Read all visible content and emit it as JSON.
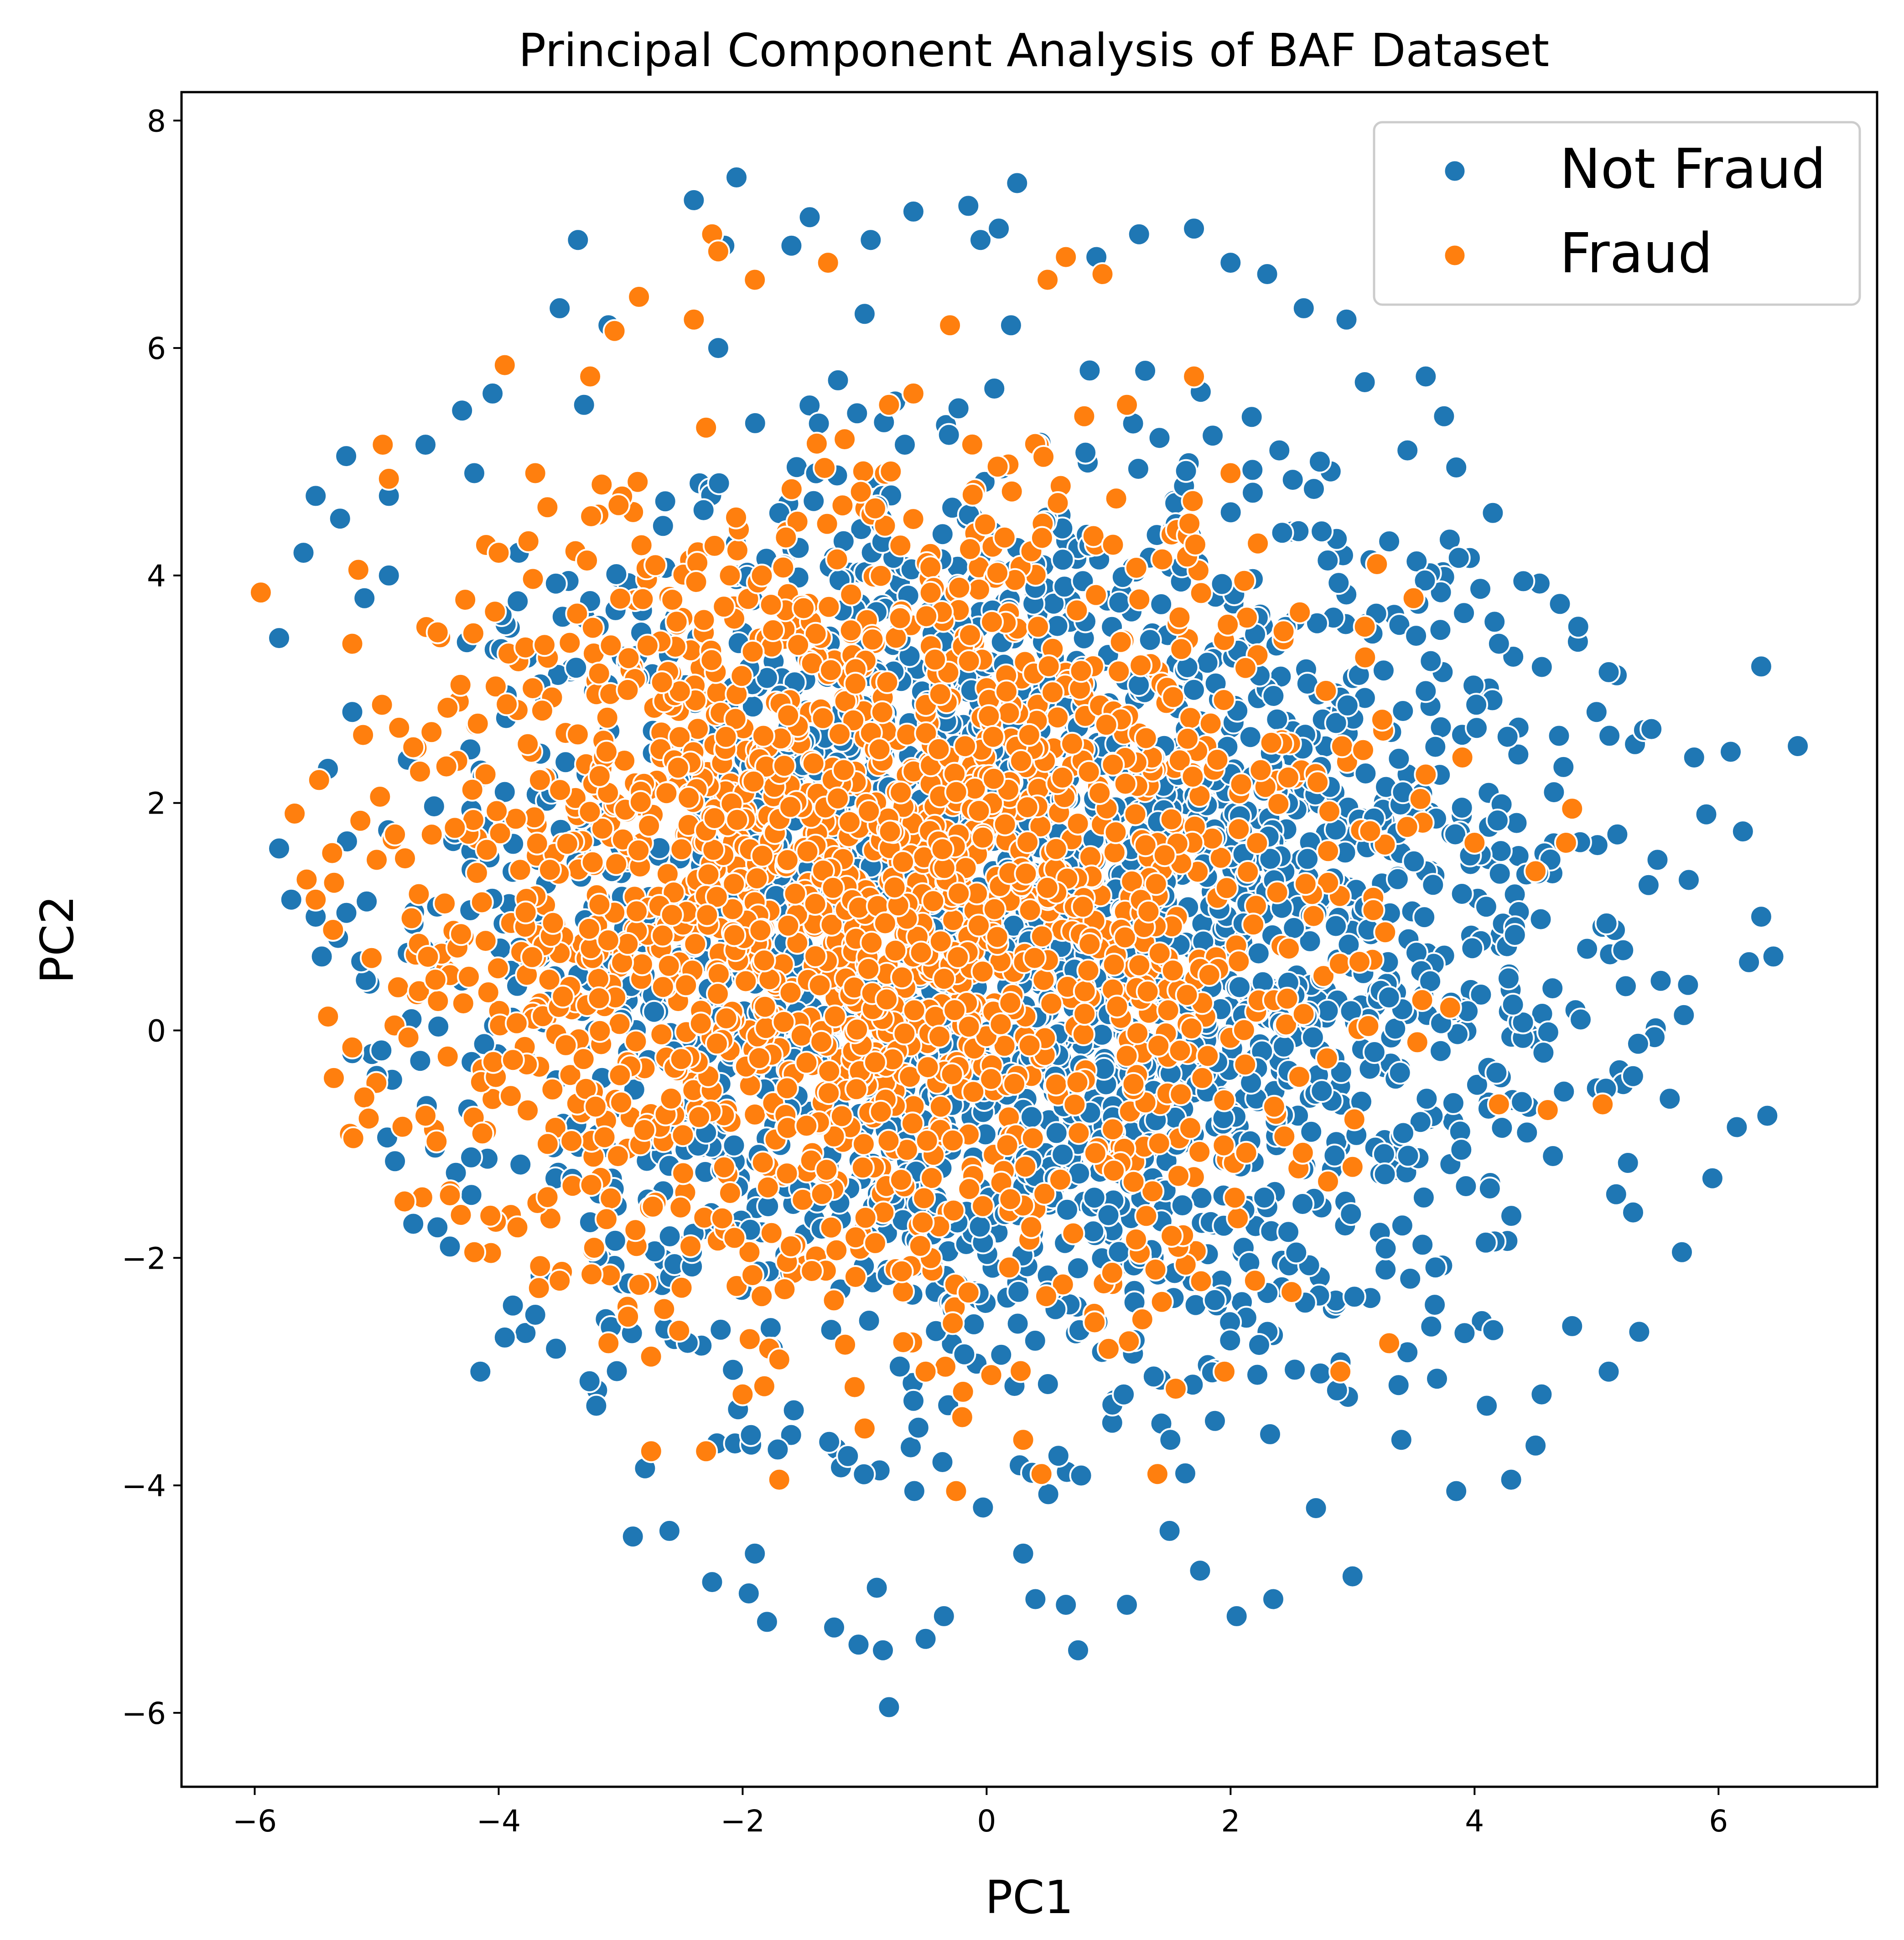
{
  "chart_data": {
    "type": "scatter",
    "title": "Principal Component Analysis of BAF Dataset",
    "xlabel": "PC1",
    "ylabel": "PC2",
    "xlim": [
      -6.6,
      7.3
    ],
    "ylim": [
      -6.65,
      8.25
    ],
    "xticks": [
      -6,
      -4,
      -2,
      0,
      2,
      4,
      6
    ],
    "yticks": [
      -6,
      -4,
      -2,
      0,
      2,
      4,
      6,
      8
    ],
    "xtick_labels": [
      "−6",
      "−4",
      "−2",
      "0",
      "2",
      "4",
      "6"
    ],
    "ytick_labels": [
      "−6",
      "−4",
      "−2",
      "0",
      "2",
      "4",
      "6",
      "8"
    ],
    "grid": false,
    "legend_position": "upper-right",
    "series": [
      {
        "name": "Not Fraud",
        "color": "#1f77b4",
        "points": [
          [
            -5.95,
            3.85
          ],
          [
            -5.8,
            3.45
          ],
          [
            -5.8,
            1.6
          ],
          [
            -5.7,
            1.15
          ],
          [
            -5.6,
            4.2
          ],
          [
            -5.5,
            4.7
          ],
          [
            -5.45,
            0.65
          ],
          [
            -5.3,
            4.5
          ],
          [
            -5.25,
            5.05
          ],
          [
            -5.1,
            3.8
          ],
          [
            -4.9,
            4.7
          ],
          [
            -4.7,
            -1.7
          ],
          [
            -4.6,
            5.15
          ],
          [
            -4.4,
            -1.9
          ],
          [
            -4.3,
            5.45
          ],
          [
            -4.15,
            -3.0
          ],
          [
            -4.05,
            5.6
          ],
          [
            -3.95,
            -2.7
          ],
          [
            -3.5,
            6.35
          ],
          [
            -3.35,
            6.95
          ],
          [
            -3.1,
            6.2
          ],
          [
            -2.9,
            -4.45
          ],
          [
            -2.6,
            -4.4
          ],
          [
            -2.4,
            7.3
          ],
          [
            -2.25,
            -4.85
          ],
          [
            -2.15,
            6.9
          ],
          [
            -2.05,
            7.5
          ],
          [
            -1.95,
            -4.95
          ],
          [
            -1.8,
            -5.2
          ],
          [
            -1.6,
            6.9
          ],
          [
            -1.45,
            7.15
          ],
          [
            -1.25,
            -5.25
          ],
          [
            -1.05,
            -5.4
          ],
          [
            -0.95,
            6.95
          ],
          [
            -0.85,
            -5.45
          ],
          [
            -0.8,
            -5.95
          ],
          [
            -0.6,
            7.2
          ],
          [
            -0.5,
            -5.35
          ],
          [
            -0.35,
            -5.15
          ],
          [
            -0.15,
            7.25
          ],
          [
            -0.05,
            6.95
          ],
          [
            0.1,
            7.05
          ],
          [
            0.25,
            7.45
          ],
          [
            0.4,
            -5.0
          ],
          [
            0.65,
            -5.05
          ],
          [
            0.75,
            -5.45
          ],
          [
            0.9,
            6.8
          ],
          [
            1.15,
            -5.05
          ],
          [
            1.25,
            7.0
          ],
          [
            1.7,
            7.05
          ],
          [
            1.75,
            -4.75
          ],
          [
            2.0,
            6.75
          ],
          [
            2.05,
            -5.15
          ],
          [
            2.3,
            6.65
          ],
          [
            2.35,
            -5.0
          ],
          [
            2.6,
            6.35
          ],
          [
            2.95,
            6.25
          ],
          [
            3.0,
            -4.8
          ],
          [
            3.1,
            5.7
          ],
          [
            3.45,
            5.1
          ],
          [
            3.6,
            5.75
          ],
          [
            3.75,
            5.4
          ],
          [
            3.85,
            -4.05
          ],
          [
            3.85,
            4.95
          ],
          [
            4.15,
            4.55
          ],
          [
            4.3,
            -3.95
          ],
          [
            4.4,
            3.95
          ],
          [
            4.5,
            -3.65
          ],
          [
            4.55,
            -3.2
          ],
          [
            4.7,
            3.75
          ],
          [
            4.85,
            3.55
          ],
          [
            5.1,
            3.15
          ],
          [
            5.1,
            -3.0
          ],
          [
            5.35,
            -2.65
          ],
          [
            5.45,
            2.65
          ],
          [
            5.7,
            -1.95
          ],
          [
            5.8,
            2.4
          ],
          [
            5.9,
            1.9
          ],
          [
            5.95,
            -1.3
          ],
          [
            6.1,
            2.45
          ],
          [
            6.15,
            -0.85
          ],
          [
            6.2,
            1.75
          ],
          [
            6.25,
            0.6
          ],
          [
            6.35,
            3.2
          ],
          [
            6.35,
            1.0
          ],
          [
            6.4,
            -0.75
          ],
          [
            6.45,
            0.65
          ],
          [
            6.65,
            2.5
          ],
          [
            -5.2,
            2.8
          ],
          [
            -5.0,
            -0.4
          ],
          [
            -4.85,
            -1.15
          ],
          [
            -3.7,
            -2.5
          ],
          [
            -3.2,
            -3.3
          ],
          [
            -2.8,
            -3.85
          ],
          [
            -1.9,
            -4.6
          ],
          [
            -0.9,
            -4.9
          ],
          [
            0.3,
            -4.6
          ],
          [
            1.5,
            -4.4
          ],
          [
            2.7,
            -4.2
          ],
          [
            3.4,
            -3.6
          ],
          [
            4.1,
            -3.3
          ],
          [
            4.8,
            -2.6
          ],
          [
            5.3,
            -1.6
          ],
          [
            5.6,
            -0.6
          ],
          [
            5.75,
            0.4
          ],
          [
            5.5,
            1.5
          ],
          [
            5.0,
            2.8
          ],
          [
            4.2,
            3.4
          ],
          [
            3.3,
            4.3
          ],
          [
            2.4,
            5.1
          ],
          [
            1.3,
            5.8
          ],
          [
            0.2,
            6.2
          ],
          [
            -1.0,
            6.3
          ],
          [
            -2.2,
            6.0
          ],
          [
            -3.3,
            5.5
          ],
          [
            -4.2,
            4.9
          ],
          [
            -4.9,
            4.0
          ],
          [
            -5.4,
            2.3
          ],
          [
            -5.5,
            1.0
          ],
          [
            -5.2,
            -0.2
          ]
        ],
        "dense_region": {
          "center": [
            0.2,
            0.85
          ],
          "radius_x": 5.6,
          "radius_y": 5.05,
          "count": 2600
        }
      },
      {
        "name": "Fraud",
        "color": "#ff7f0e",
        "points": [
          [
            -5.95,
            3.85
          ],
          [
            -5.5,
            1.15
          ],
          [
            -5.2,
            3.4
          ],
          [
            -5.15,
            4.05
          ],
          [
            -5.2,
            -0.15
          ],
          [
            -4.95,
            5.15
          ],
          [
            -4.9,
            4.85
          ],
          [
            -4.6,
            -0.75
          ],
          [
            -4.4,
            -1.45
          ],
          [
            -4.2,
            -1.95
          ],
          [
            -3.95,
            5.85
          ],
          [
            -3.7,
            4.9
          ],
          [
            -3.25,
            5.75
          ],
          [
            -3.1,
            -2.75
          ],
          [
            -3.05,
            6.15
          ],
          [
            -2.85,
            6.45
          ],
          [
            -2.75,
            -3.7
          ],
          [
            -2.4,
            6.25
          ],
          [
            -2.25,
            7.0
          ],
          [
            -2.2,
            6.85
          ],
          [
            -2.3,
            -3.7
          ],
          [
            -1.9,
            6.6
          ],
          [
            -1.7,
            -3.95
          ],
          [
            -1.3,
            6.75
          ],
          [
            -1.0,
            -3.5
          ],
          [
            -0.6,
            5.6
          ],
          [
            -0.3,
            6.2
          ],
          [
            -0.25,
            -4.05
          ],
          [
            -0.2,
            -3.4
          ],
          [
            0.3,
            -3.6
          ],
          [
            0.45,
            -3.9
          ],
          [
            0.5,
            6.6
          ],
          [
            0.65,
            6.8
          ],
          [
            0.95,
            6.65
          ],
          [
            1.15,
            5.5
          ],
          [
            1.4,
            -3.9
          ],
          [
            1.55,
            -3.15
          ],
          [
            1.7,
            5.75
          ],
          [
            1.95,
            -3.0
          ],
          [
            2.5,
            -2.3
          ],
          [
            2.9,
            -3.0
          ],
          [
            3.1,
            3.55
          ],
          [
            3.3,
            -2.75
          ],
          [
            3.5,
            3.8
          ],
          [
            3.6,
            2.25
          ],
          [
            4.0,
            1.65
          ],
          [
            4.2,
            -0.65
          ],
          [
            4.5,
            1.4
          ],
          [
            4.6,
            -0.7
          ],
          [
            4.75,
            1.65
          ],
          [
            4.8,
            1.95
          ],
          [
            5.05,
            -0.65
          ],
          [
            -4.0,
            4.2
          ],
          [
            -3.5,
            -2.2
          ],
          [
            -2.0,
            -3.2
          ],
          [
            -0.5,
            -3.0
          ],
          [
            1.0,
            -2.8
          ],
          [
            2.2,
            -2.2
          ],
          [
            3.0,
            -1.2
          ],
          [
            3.8,
            0.2
          ],
          [
            3.9,
            2.4
          ],
          [
            3.2,
            4.1
          ],
          [
            2.0,
            4.9
          ],
          [
            0.8,
            5.4
          ],
          [
            -0.8,
            5.5
          ],
          [
            -2.3,
            5.3
          ],
          [
            -3.6,
            4.6
          ],
          [
            -4.5,
            3.5
          ],
          [
            -5.0,
            1.5
          ]
        ],
        "dense_region": {
          "center": [
            -1.0,
            1.1
          ],
          "radius_x": 4.8,
          "radius_y": 4.35,
          "count": 1800
        }
      }
    ]
  }
}
